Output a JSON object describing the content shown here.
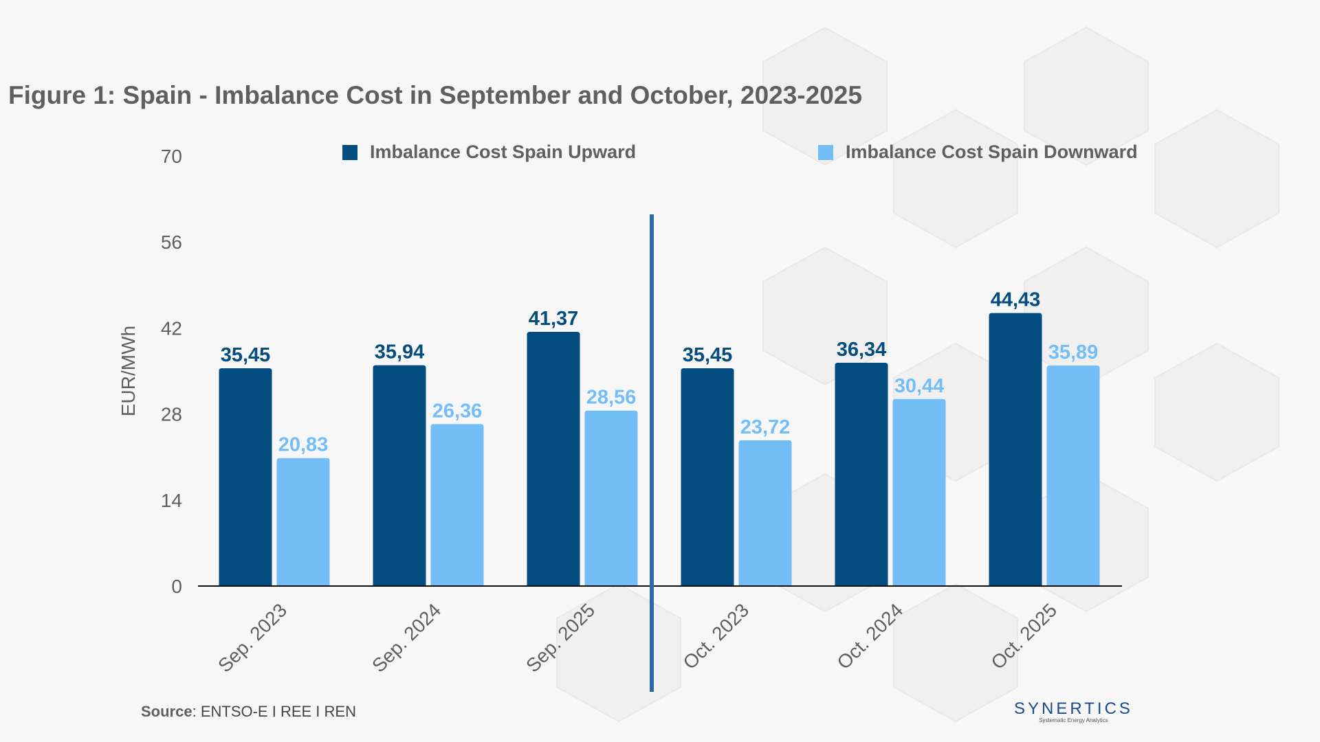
{
  "title": "Figure 1: Spain - Imbalance Cost in September and October, 2023-2025",
  "source_label": "Source",
  "source_text": ": ENTSO-E I REE I REN",
  "logo": {
    "name": "SYNERTICS",
    "tagline": "Systematic Energy Analytics"
  },
  "chart_data": {
    "type": "bar",
    "title": "Figure 1: Spain - Imbalance Cost in September and October, 2023-2025",
    "xlabel": "",
    "ylabel": "EUR/MWh",
    "ylim": [
      0,
      70
    ],
    "yticks": [
      "0",
      "14",
      "28",
      "42",
      "56",
      "70"
    ],
    "categories": [
      "Sep. 2023",
      "Sep. 2024",
      "Sep. 2025",
      "Oct. 2023",
      "Oct. 2024",
      "Oct. 2025"
    ],
    "series": [
      {
        "name": "Imbalance Cost Spain Upward",
        "color": "#024c7f",
        "values": [
          35.45,
          35.94,
          41.37,
          35.45,
          36.34,
          44.43
        ],
        "labels": [
          "35,45",
          "35,94",
          "41,37",
          "35,45",
          "36,34",
          "44,43"
        ]
      },
      {
        "name": "Imbalance Cost Spain Downward",
        "color": "#74bef8",
        "values": [
          20.83,
          26.36,
          28.56,
          23.72,
          30.44,
          35.89
        ],
        "labels": [
          "20,83",
          "26,36",
          "28,56",
          "23,72",
          "30,44",
          "35,89"
        ]
      }
    ],
    "separator_between": [
      "Sep. 2025",
      "Oct. 2023"
    ],
    "separator_color": "#2a6aa8",
    "grid": false,
    "legend": "top"
  }
}
